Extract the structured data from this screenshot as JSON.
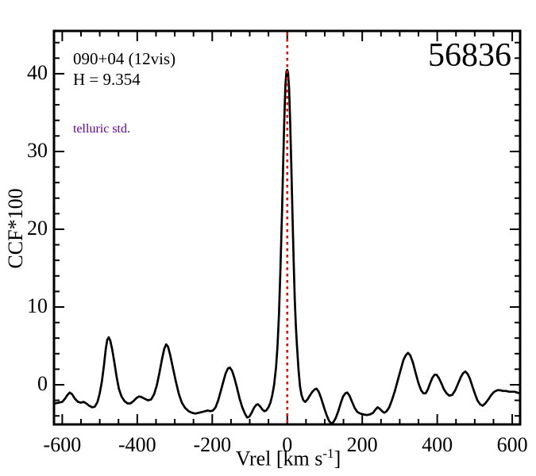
{
  "figure": {
    "title": "56836",
    "source_label": "090+04 (12vis)",
    "h_mag": "H = 9.354",
    "note": "telluric std.",
    "ylabel": "CCF*100",
    "xlabel": {
      "pre": "Vrel [km s",
      "sup": "-1",
      "post": "]"
    }
  },
  "colors": {
    "curve": "#000000",
    "frame": "#000000",
    "ref_line": "#e01010",
    "note_text": "#6800a8",
    "text": "#000000",
    "background": "#ffffff"
  },
  "chart_data": {
    "type": "line",
    "title": "56836",
    "xlabel": "Vrel [km s^-1]",
    "ylabel": "CCF*100",
    "xlim": [
      -622,
      621
    ],
    "ylim": [
      -5.1,
      45.5
    ],
    "x_major_ticks": [
      -600,
      -400,
      -200,
      0,
      200,
      400,
      600
    ],
    "x_minor_step": 50,
    "y_major_ticks": [
      0,
      10,
      20,
      30,
      40
    ],
    "y_minor_step": 2,
    "grid": false,
    "legend": false,
    "ref_line_x": 0,
    "annotations": [
      "090+04 (12vis)",
      "H = 9.354",
      "telluric std.",
      "56836"
    ],
    "series": [
      {
        "name": "CCF",
        "color": "#000000",
        "points": [
          [
            -620,
            -2.4
          ],
          [
            -610,
            -2.3
          ],
          [
            -600,
            -2.2
          ],
          [
            -593,
            -1.8
          ],
          [
            -586,
            -1.3
          ],
          [
            -580,
            -1.0
          ],
          [
            -574,
            -1.2
          ],
          [
            -566,
            -1.8
          ],
          [
            -558,
            -2.2
          ],
          [
            -550,
            -2.3
          ],
          [
            -543,
            -2.2
          ],
          [
            -536,
            -2.4
          ],
          [
            -528,
            -2.7
          ],
          [
            -520,
            -2.9
          ],
          [
            -513,
            -2.8
          ],
          [
            -506,
            -2.2
          ],
          [
            -500,
            -1.1
          ],
          [
            -494,
            0.5
          ],
          [
            -489,
            2.4
          ],
          [
            -484,
            4.6
          ],
          [
            -480,
            5.8
          ],
          [
            -476,
            6.1
          ],
          [
            -472,
            5.7
          ],
          [
            -467,
            4.6
          ],
          [
            -461,
            2.9
          ],
          [
            -455,
            1.0
          ],
          [
            -449,
            -0.5
          ],
          [
            -442,
            -1.5
          ],
          [
            -434,
            -2.1
          ],
          [
            -426,
            -2.4
          ],
          [
            -418,
            -2.4
          ],
          [
            -410,
            -2.1
          ],
          [
            -402,
            -1.7
          ],
          [
            -395,
            -1.5
          ],
          [
            -388,
            -1.6
          ],
          [
            -380,
            -1.8
          ],
          [
            -371,
            -2.0
          ],
          [
            -363,
            -1.9
          ],
          [
            -355,
            -1.2
          ],
          [
            -348,
            -0.1
          ],
          [
            -341,
            1.5
          ],
          [
            -334,
            3.3
          ],
          [
            -328,
            4.6
          ],
          [
            -323,
            5.2
          ],
          [
            -318,
            4.9
          ],
          [
            -312,
            3.8
          ],
          [
            -305,
            2.2
          ],
          [
            -297,
            0.4
          ],
          [
            -289,
            -1.2
          ],
          [
            -281,
            -2.3
          ],
          [
            -272,
            -3.0
          ],
          [
            -263,
            -3.4
          ],
          [
            -254,
            -3.6
          ],
          [
            -245,
            -3.7
          ],
          [
            -236,
            -3.6
          ],
          [
            -227,
            -3.5
          ],
          [
            -219,
            -3.4
          ],
          [
            -212,
            -3.3
          ],
          [
            -205,
            -3.4
          ],
          [
            -198,
            -3.3
          ],
          [
            -191,
            -2.9
          ],
          [
            -184,
            -2.0
          ],
          [
            -177,
            -0.8
          ],
          [
            -170,
            0.5
          ],
          [
            -164,
            1.5
          ],
          [
            -158,
            2.1
          ],
          [
            -153,
            2.2
          ],
          [
            -147,
            1.8
          ],
          [
            -141,
            0.9
          ],
          [
            -134,
            -0.4
          ],
          [
            -127,
            -1.8
          ],
          [
            -120,
            -2.9
          ],
          [
            -113,
            -3.7
          ],
          [
            -107,
            -4.2
          ],
          [
            -101,
            -4.1
          ],
          [
            -95,
            -3.6
          ],
          [
            -89,
            -3.0
          ],
          [
            -83,
            -2.6
          ],
          [
            -78,
            -2.5
          ],
          [
            -72,
            -2.8
          ],
          [
            -66,
            -3.2
          ],
          [
            -61,
            -3.4
          ],
          [
            -56,
            -3.3
          ],
          [
            -50,
            -2.9
          ],
          [
            -45,
            -2.3
          ],
          [
            -40,
            -1.4
          ],
          [
            -35,
            0.0
          ],
          [
            -30,
            2.2
          ],
          [
            -26,
            5.0
          ],
          [
            -22,
            9.0
          ],
          [
            -18,
            15.0
          ],
          [
            -14,
            22.0
          ],
          [
            -11,
            28.0
          ],
          [
            -8,
            34.0
          ],
          [
            -5,
            38.5
          ],
          [
            -2,
            40.3
          ],
          [
            0,
            40.5
          ],
          [
            2,
            40.2
          ],
          [
            5,
            38.0
          ],
          [
            8,
            33.5
          ],
          [
            11,
            28.0
          ],
          [
            14,
            22.0
          ],
          [
            17,
            16.0
          ],
          [
            20,
            11.0
          ],
          [
            23,
            7.5
          ],
          [
            26,
            5.0
          ],
          [
            30,
            2.0
          ],
          [
            34,
            -0.2
          ],
          [
            38,
            -1.3
          ],
          [
            43,
            -2.0
          ],
          [
            48,
            -2.2
          ],
          [
            54,
            -1.9
          ],
          [
            60,
            -1.4
          ],
          [
            67,
            -0.9
          ],
          [
            73,
            -0.6
          ],
          [
            78,
            -0.5
          ],
          [
            84,
            -0.9
          ],
          [
            91,
            -1.8
          ],
          [
            98,
            -2.9
          ],
          [
            105,
            -3.9
          ],
          [
            111,
            -4.6
          ],
          [
            117,
            -5.0
          ],
          [
            123,
            -4.8
          ],
          [
            129,
            -4.3
          ],
          [
            136,
            -3.4
          ],
          [
            143,
            -2.3
          ],
          [
            149,
            -1.5
          ],
          [
            155,
            -1.1
          ],
          [
            160,
            -1.0
          ],
          [
            166,
            -1.4
          ],
          [
            173,
            -2.2
          ],
          [
            180,
            -3.0
          ],
          [
            187,
            -3.5
          ],
          [
            195,
            -3.7
          ],
          [
            203,
            -3.8
          ],
          [
            212,
            -3.9
          ],
          [
            221,
            -3.8
          ],
          [
            229,
            -3.6
          ],
          [
            235,
            -3.2
          ],
          [
            241,
            -2.9
          ],
          [
            247,
            -3.1
          ],
          [
            253,
            -3.4
          ],
          [
            259,
            -3.6
          ],
          [
            265,
            -3.4
          ],
          [
            272,
            -2.9
          ],
          [
            279,
            -2.0
          ],
          [
            287,
            -0.8
          ],
          [
            295,
            0.6
          ],
          [
            303,
            2.0
          ],
          [
            310,
            3.2
          ],
          [
            316,
            3.8
          ],
          [
            322,
            4.1
          ],
          [
            328,
            3.8
          ],
          [
            335,
            2.9
          ],
          [
            342,
            1.6
          ],
          [
            350,
            0.2
          ],
          [
            357,
            -0.7
          ],
          [
            363,
            -1.1
          ],
          [
            369,
            -1.1
          ],
          [
            375,
            -0.6
          ],
          [
            381,
            0.2
          ],
          [
            387,
            0.9
          ],
          [
            393,
            1.3
          ],
          [
            398,
            1.3
          ],
          [
            404,
            0.9
          ],
          [
            411,
            0.2
          ],
          [
            418,
            -0.6
          ],
          [
            425,
            -1.1
          ],
          [
            432,
            -1.4
          ],
          [
            440,
            -1.3
          ],
          [
            448,
            -0.7
          ],
          [
            456,
            0.2
          ],
          [
            463,
            1.0
          ],
          [
            469,
            1.5
          ],
          [
            475,
            1.7
          ],
          [
            481,
            1.4
          ],
          [
            487,
            0.8
          ],
          [
            493,
            -0.1
          ],
          [
            500,
            -1.1
          ],
          [
            507,
            -2.0
          ],
          [
            514,
            -2.5
          ],
          [
            521,
            -2.7
          ],
          [
            528,
            -2.4
          ],
          [
            536,
            -1.9
          ],
          [
            544,
            -1.3
          ],
          [
            552,
            -0.9
          ],
          [
            560,
            -0.7
          ],
          [
            568,
            -0.7
          ],
          [
            576,
            -0.8
          ],
          [
            584,
            -0.8
          ],
          [
            592,
            -0.9
          ],
          [
            600,
            -0.9
          ],
          [
            607,
            -0.9
          ],
          [
            613,
            -1.0
          ],
          [
            620,
            -1.1
          ]
        ]
      }
    ]
  }
}
